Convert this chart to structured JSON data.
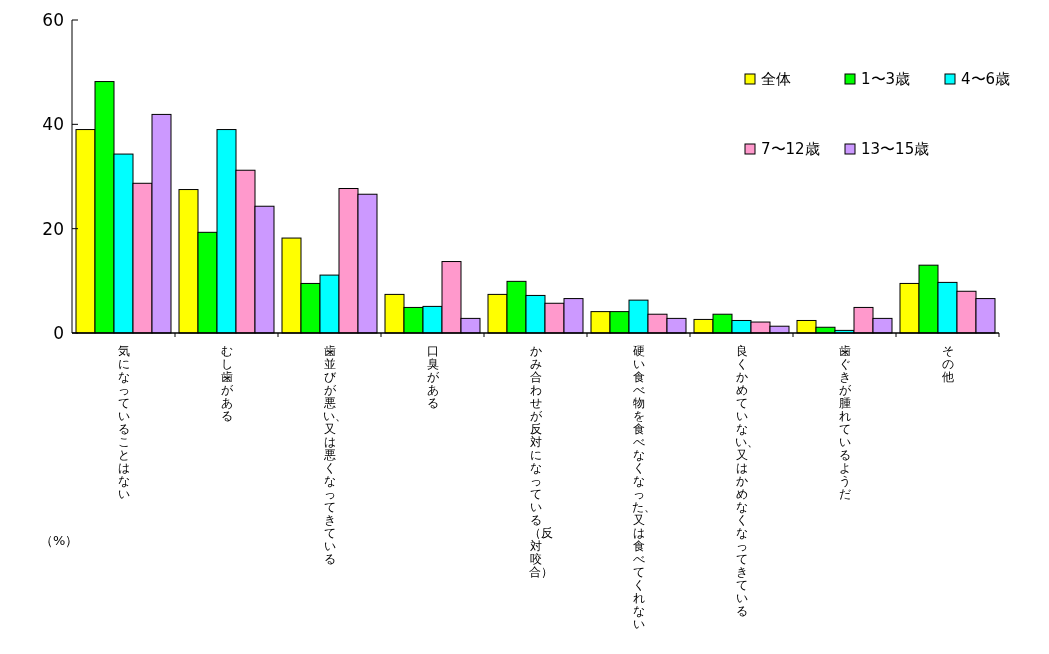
{
  "chart_data": {
    "type": "bar",
    "annotations": [
      "（%）"
    ],
    "categories": [
      "気になっていることはない",
      "むし歯がある",
      "歯並びが悪い、又は悪くなってきている",
      "口臭がある",
      "かみ合わせが反対になっている（反対咬合）",
      "硬い食べ物を食べなくなった、又は食べてくれない",
      "良くかめていない、又はかめなくなってきている",
      "歯ぐきが腫れているようだ",
      "その他"
    ],
    "series": [
      {
        "name": "全体",
        "color": "#ffff00",
        "values": [
          39.0,
          27.5,
          18.2,
          7.4,
          7.4,
          4.1,
          2.6,
          2.4,
          9.5
        ]
      },
      {
        "name": "1〜3歳",
        "color": "#00ff00",
        "values": [
          48.2,
          19.3,
          9.5,
          4.9,
          9.9,
          4.1,
          3.6,
          1.1,
          13.0
        ]
      },
      {
        "name": "4〜6歳",
        "color": "#00ffff",
        "values": [
          34.3,
          39.0,
          11.1,
          5.1,
          7.2,
          6.3,
          2.4,
          0.5,
          9.7
        ]
      },
      {
        "name": "7〜12歳",
        "color": "#ff99cc",
        "values": [
          28.7,
          31.2,
          27.7,
          13.7,
          5.7,
          3.6,
          2.1,
          4.9,
          8.0
        ]
      },
      {
        "name": "13〜15歳",
        "color": "#cc99ff",
        "values": [
          41.9,
          24.3,
          26.6,
          2.8,
          6.6,
          2.8,
          1.3,
          2.8,
          6.6
        ]
      }
    ],
    "ylim": [
      0,
      60
    ],
    "yticks": [
      0,
      20,
      40,
      60
    ],
    "grid": false,
    "legend": "top right"
  }
}
